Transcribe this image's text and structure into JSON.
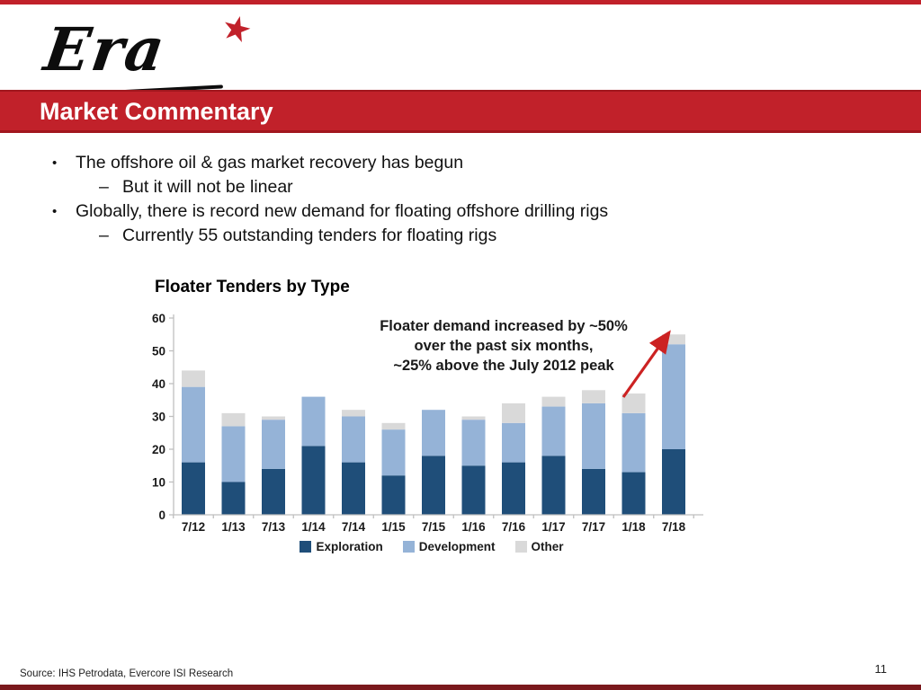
{
  "page": {
    "logo_text": "Era",
    "logo_star": "★",
    "header_title": "Market Commentary",
    "source": "Source: IHS Petrodata, Evercore ISI Research",
    "page_number": "11"
  },
  "markers": {
    "bullet": "•",
    "dash": "–"
  },
  "bullets": [
    {
      "level": 1,
      "text": "The offshore oil & gas market recovery has begun"
    },
    {
      "level": 2,
      "text": "But it will not be linear"
    },
    {
      "level": 1,
      "text": "Globally, there is record new demand for floating offshore drilling rigs"
    },
    {
      "level": 2,
      "text": "Currently 55 outstanding tenders for floating rigs"
    }
  ],
  "colors": {
    "accent_red": "#C1212A",
    "footer_red": "#7A181C",
    "axis_gray": "#BFBFBF"
  },
  "chart_data": {
    "type": "bar",
    "stacked": true,
    "title": "Floater Tenders by Type",
    "categories": [
      "7/12",
      "1/13",
      "7/13",
      "1/14",
      "7/14",
      "1/15",
      "7/15",
      "1/16",
      "7/16",
      "1/17",
      "7/17",
      "1/18",
      "7/18"
    ],
    "series": [
      {
        "name": "Exploration",
        "color": "#1F4E79",
        "values": [
          16,
          10,
          14,
          21,
          16,
          12,
          18,
          15,
          16,
          18,
          14,
          13,
          20
        ]
      },
      {
        "name": "Development",
        "color": "#95B3D7",
        "values": [
          23,
          17,
          15,
          15,
          14,
          14,
          14,
          14,
          12,
          15,
          20,
          18,
          32
        ]
      },
      {
        "name": "Other",
        "color": "#D9D9D9",
        "values": [
          5,
          4,
          1,
          0,
          2,
          2,
          0,
          1,
          6,
          3,
          4,
          6,
          3
        ]
      }
    ],
    "xlabel": "",
    "ylabel": "",
    "ylim": [
      0,
      60
    ],
    "yticks": [
      0,
      10,
      20,
      30,
      40,
      50,
      60
    ],
    "grid": false,
    "legend_position": "bottom",
    "annotation": {
      "lines": [
        "Floater demand increased by ~50%",
        "over the past six months,",
        "~25% above the July 2012 peak"
      ],
      "arrow_color": "#CC2222"
    }
  }
}
